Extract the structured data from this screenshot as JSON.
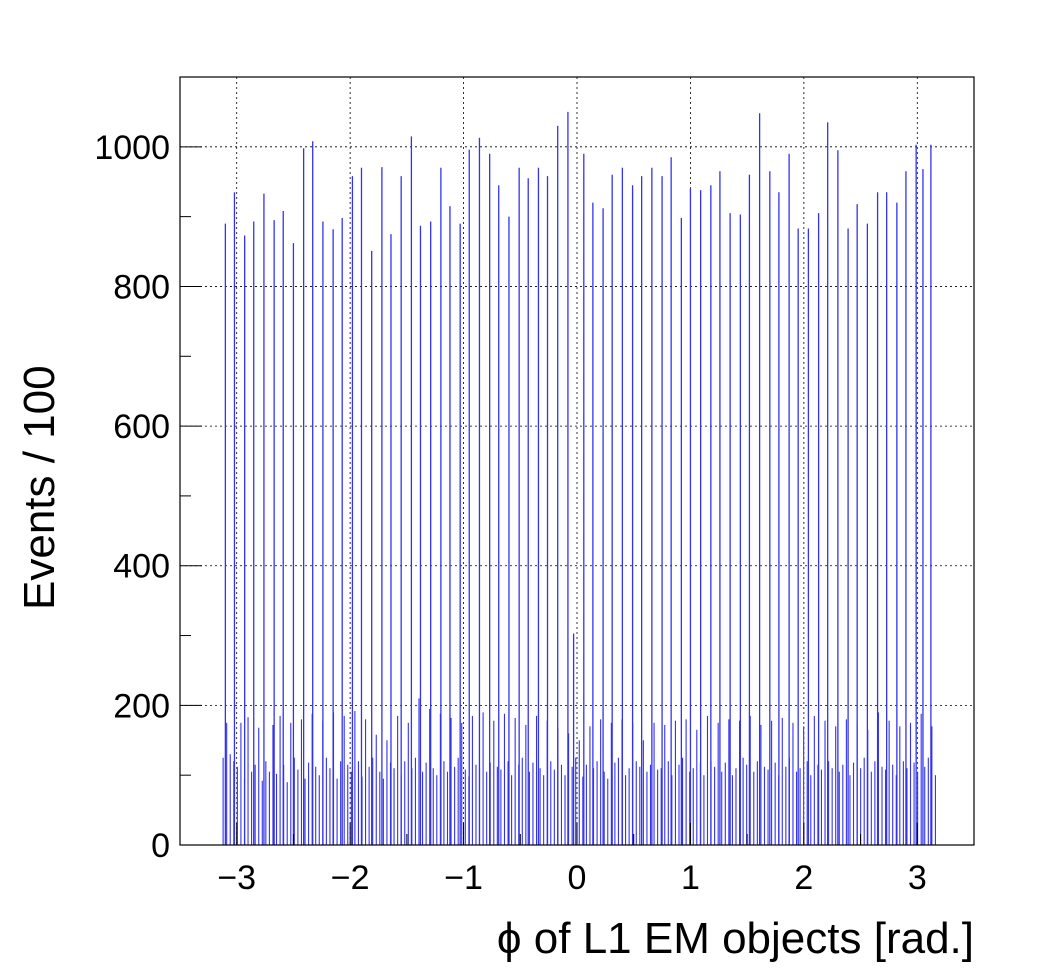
{
  "chart_data": {
    "type": "bar",
    "xlabel": "ϕ of L1 EM objects [rad.]",
    "ylabel": "Events / 100",
    "xlim": [
      -3.5,
      3.5
    ],
    "ylim": [
      0,
      1100
    ],
    "grid": true,
    "bar_color": "#3333ee",
    "x_ticks": [
      {
        "value": -3,
        "label": "−3"
      },
      {
        "value": -2,
        "label": "−2"
      },
      {
        "value": -1,
        "label": "−1"
      },
      {
        "value": 0,
        "label": "0"
      },
      {
        "value": 1,
        "label": "1"
      },
      {
        "value": 2,
        "label": "2"
      },
      {
        "value": 3,
        "label": "3"
      }
    ],
    "y_ticks": [
      {
        "value": 0,
        "label": "0"
      },
      {
        "value": 200,
        "label": "200"
      },
      {
        "value": 400,
        "label": "400"
      },
      {
        "value": 600,
        "label": "600"
      },
      {
        "value": 800,
        "label": "800"
      },
      {
        "value": 1000,
        "label": "1000"
      }
    ],
    "tall_peaks": {
      "x": [
        -3.1,
        -3.02,
        -2.93,
        -2.85,
        -2.76,
        -2.67,
        -2.59,
        -2.5,
        -2.41,
        -2.33,
        -2.24,
        -2.15,
        -2.07,
        -1.98,
        -1.9,
        -1.81,
        -1.72,
        -1.64,
        -1.55,
        -1.46,
        -1.38,
        -1.29,
        -1.2,
        -1.12,
        -1.03,
        -0.95,
        -0.86,
        -0.77,
        -0.69,
        -0.6,
        -0.51,
        -0.43,
        -0.34,
        -0.26,
        -0.17,
        -0.08,
        -0.03,
        0.06,
        0.14,
        0.23,
        0.31,
        0.4,
        0.49,
        0.57,
        0.66,
        0.75,
        0.83,
        0.92,
        1.0,
        1.09,
        1.18,
        1.26,
        1.35,
        1.44,
        1.52,
        1.61,
        1.7,
        1.78,
        1.87,
        1.95,
        2.04,
        2.13,
        2.21,
        2.3,
        2.39,
        2.47,
        2.56,
        2.65,
        2.73,
        2.82,
        2.9,
        2.99,
        3.05,
        3.12
      ],
      "y": [
        890,
        935,
        873,
        893,
        933,
        895,
        908,
        862,
        998,
        1008,
        893,
        882,
        898,
        958,
        970,
        851,
        971,
        875,
        958,
        1015,
        887,
        893,
        970,
        915,
        890,
        996,
        1013,
        990,
        945,
        900,
        970,
        955,
        970,
        958,
        1030,
        1050,
        303,
        990,
        920,
        912,
        960,
        970,
        945,
        958,
        970,
        958,
        985,
        898,
        940,
        938,
        945,
        965,
        905,
        903,
        960,
        1048,
        965,
        935,
        990,
        883,
        883,
        905,
        1035,
        995,
        883,
        918,
        890,
        935,
        935,
        920,
        965,
        1003,
        968,
        1003
      ]
    },
    "base_level_bins": {
      "x_start": -3.12,
      "x_step": 0.0314,
      "y": [
        125,
        175,
        130,
        120,
        112,
        175,
        95,
        183,
        105,
        115,
        168,
        92,
        120,
        105,
        172,
        102,
        185,
        115,
        90,
        175,
        125,
        108,
        180,
        95,
        118,
        188,
        112,
        100,
        178,
        125,
        110,
        190,
        95,
        120,
        185,
        115,
        105,
        192,
        120,
        98,
        180,
        112,
        125,
        158,
        105,
        95,
        150,
        118,
        110,
        185,
        100,
        120,
        175,
        110,
        125,
        210,
        105,
        118,
        195,
        110,
        100,
        188,
        120,
        105,
        182,
        112,
        125,
        175,
        108,
        98,
        185,
        115,
        110,
        190,
        105,
        118,
        178,
        112,
        108,
        188,
        120,
        100,
        182,
        115,
        125,
        172,
        105,
        118,
        185,
        110,
        100,
        178,
        120,
        108,
        168,
        115,
        100,
        160,
        112,
        125,
        150,
        98,
        115,
        170,
        110,
        120,
        180,
        105,
        95,
        175,
        118,
        125,
        180,
        100,
        110,
        175,
        120,
        112,
        150,
        105,
        115,
        175,
        108,
        110,
        172,
        120,
        100,
        178,
        115,
        125,
        180,
        105,
        110,
        165,
        118,
        100,
        185,
        120,
        112,
        175,
        105,
        118,
        180,
        100,
        110,
        178,
        125,
        115,
        185,
        105,
        120,
        172,
        112,
        108,
        178,
        118,
        100,
        182,
        112,
        125,
        175,
        105,
        110,
        170,
        120,
        100,
        185,
        115,
        108,
        178,
        120,
        110,
        170,
        105,
        115,
        180,
        100,
        118,
        175,
        110,
        125,
        165,
        105,
        120,
        190,
        112,
        108,
        178,
        115,
        100,
        170,
        120,
        110,
        175,
        118,
        105,
        188,
        112,
        125,
        170,
        100,
        115,
        178,
        108,
        120,
        172,
        110,
        118,
        150,
        105,
        120
      ]
    }
  }
}
